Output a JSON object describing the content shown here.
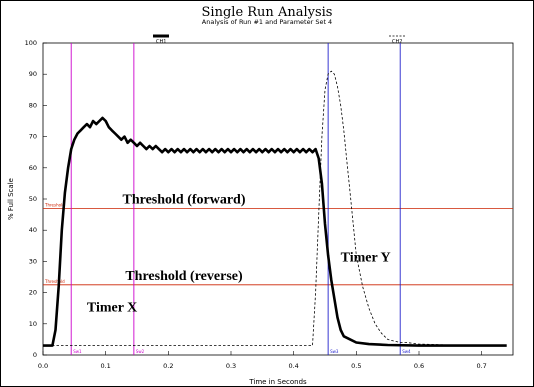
{
  "chart_data": {
    "type": "line",
    "title": "Single Run Analysis",
    "subtitle": "Analysis of Run #1 and Parameter Set 4",
    "xlabel": "Time in Seconds",
    "ylabel": "% Full Scale",
    "xlim": [
      0.0,
      0.75
    ],
    "ylim": [
      0,
      100
    ],
    "xticks": [
      "0.0",
      "0.1",
      "0.2",
      "0.3",
      "0.4",
      "0.5",
      "0.6",
      "0.7"
    ],
    "yticks": [
      "0",
      "10",
      "20",
      "30",
      "40",
      "50",
      "60",
      "70",
      "80",
      "90",
      "100"
    ],
    "legend": [
      "CH1",
      "CH2"
    ],
    "series": [
      {
        "name": "CH1",
        "color": "#000000",
        "style": "solid",
        "x": [
          0.0,
          0.015,
          0.02,
          0.025,
          0.03,
          0.035,
          0.04,
          0.045,
          0.05,
          0.055,
          0.06,
          0.065,
          0.07,
          0.075,
          0.08,
          0.085,
          0.09,
          0.095,
          0.1,
          0.105,
          0.11,
          0.115,
          0.12,
          0.125,
          0.13,
          0.135,
          0.14,
          0.145,
          0.15,
          0.155,
          0.16,
          0.165,
          0.17,
          0.175,
          0.18,
          0.185,
          0.19,
          0.195,
          0.2,
          0.205,
          0.21,
          0.215,
          0.22,
          0.225,
          0.23,
          0.235,
          0.24,
          0.245,
          0.25,
          0.255,
          0.26,
          0.265,
          0.27,
          0.275,
          0.28,
          0.285,
          0.29,
          0.295,
          0.3,
          0.305,
          0.31,
          0.315,
          0.32,
          0.325,
          0.33,
          0.335,
          0.34,
          0.345,
          0.35,
          0.355,
          0.36,
          0.365,
          0.37,
          0.375,
          0.38,
          0.385,
          0.39,
          0.395,
          0.4,
          0.405,
          0.41,
          0.415,
          0.42,
          0.425,
          0.43,
          0.435,
          0.44,
          0.445,
          0.45,
          0.455,
          0.46,
          0.465,
          0.47,
          0.475,
          0.48,
          0.49,
          0.5,
          0.52,
          0.55,
          0.6,
          0.65,
          0.7,
          0.74
        ],
        "y": [
          3,
          3,
          8,
          22,
          40,
          52,
          60,
          66,
          69,
          71,
          72,
          73,
          74,
          73,
          75,
          74,
          75,
          76,
          75,
          73,
          72,
          71,
          70,
          69,
          70,
          68,
          69,
          68,
          67,
          68,
          67,
          66,
          67,
          66,
          67,
          66,
          65,
          66,
          65,
          66,
          65,
          66,
          65,
          66,
          65,
          66,
          65,
          66,
          65,
          66,
          65,
          66,
          65,
          66,
          65,
          66,
          65,
          66,
          65,
          66,
          65,
          66,
          65,
          66,
          65,
          66,
          65,
          66,
          65,
          66,
          65,
          66,
          65,
          66,
          65,
          66,
          65,
          66,
          65,
          66,
          65,
          66,
          65,
          66,
          65,
          66,
          63,
          55,
          42,
          32,
          24,
          18,
          12,
          8,
          6,
          5,
          4,
          3.5,
          3.2,
          3,
          3,
          3,
          3
        ]
      },
      {
        "name": "CH2",
        "color": "#000000",
        "style": "dashed",
        "x": [
          0.0,
          0.05,
          0.1,
          0.2,
          0.3,
          0.4,
          0.43,
          0.435,
          0.44,
          0.445,
          0.45,
          0.455,
          0.46,
          0.465,
          0.47,
          0.475,
          0.48,
          0.485,
          0.49,
          0.495,
          0.5,
          0.51,
          0.52,
          0.53,
          0.54,
          0.55,
          0.56,
          0.57,
          0.58,
          0.6,
          0.65,
          0.7,
          0.74
        ],
        "y": [
          3,
          3,
          3,
          3,
          3,
          3,
          3,
          20,
          45,
          70,
          85,
          90,
          91,
          90,
          86,
          80,
          72,
          62,
          52,
          42,
          32,
          22,
          15,
          10,
          7,
          5,
          4.5,
          4,
          4,
          3.5,
          3.2,
          3,
          3
        ]
      }
    ],
    "vlines": [
      {
        "x": 0.045,
        "color": "#cc00cc",
        "label": "Sw1"
      },
      {
        "x": 0.145,
        "color": "#cc00cc",
        "label": "Sw2"
      },
      {
        "x": 0.455,
        "color": "#2222cc",
        "label": "Sw3"
      },
      {
        "x": 0.57,
        "color": "#2222cc",
        "label": "Sw4"
      }
    ],
    "hlines": [
      {
        "y": 47,
        "color": "#cc2200",
        "label": "Threshold"
      },
      {
        "y": 22.5,
        "color": "#cc2200",
        "label": "Threshold"
      }
    ],
    "annotations": [
      {
        "text": "Threshold (forward)",
        "x": 0.225,
        "y": 48.5
      },
      {
        "text": "Threshold (reverse)",
        "x": 0.225,
        "y": 24
      },
      {
        "text": "Timer X",
        "x": 0.07,
        "y": 14
      },
      {
        "text": "Timer Y",
        "x": 0.475,
        "y": 30
      }
    ]
  }
}
